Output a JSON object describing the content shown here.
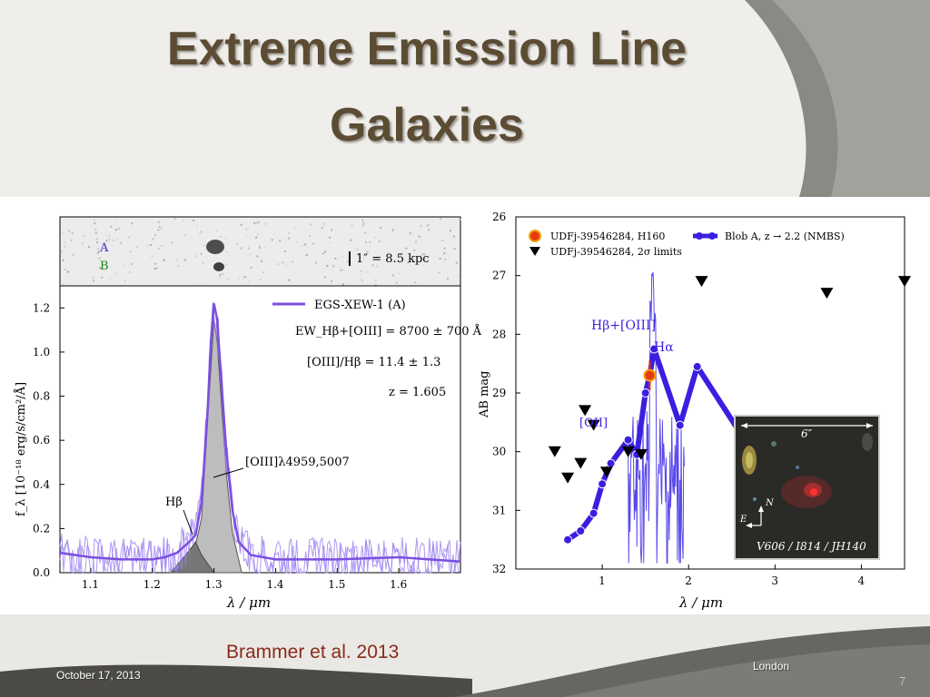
{
  "slide": {
    "title_line1": "Extreme Emission Line",
    "title_line2": "Galaxies",
    "citation": "Brammer et al. 2013",
    "date": "October 17, 2013",
    "location": "London",
    "page_number": "7",
    "colors": {
      "title": "#5b4c33",
      "citation": "#8b2a1a",
      "background": "#efeeea",
      "band": "#8a8a84"
    }
  },
  "chart_data": [
    {
      "type": "line",
      "inset_image": {
        "labels": [
          "A",
          "B"
        ],
        "scale_bar": "1″ = 8.5 kpc"
      },
      "legend": [
        "EGS-XEW-1 (A)"
      ],
      "annotations": [
        "EW_Hβ+[OIII] = 8700 ± 700 Å",
        "[OIII]/Hβ = 11.4 ± 1.3",
        "z = 1.605",
        "[OIII]λ4959,5007",
        "Hβ"
      ],
      "xlabel": "λ / μm",
      "ylabel": "f_λ [10⁻¹⁸ erg/s/cm²/Å]",
      "xlim": [
        1.05,
        1.7
      ],
      "ylim": [
        0.0,
        1.3
      ],
      "x_ticks": [
        "1.1",
        "1.2",
        "1.3",
        "1.4",
        "1.5",
        "1.6"
      ],
      "y_ticks": [
        "0.0",
        "0.2",
        "0.4",
        "0.6",
        "0.8",
        "1.0",
        "1.2"
      ],
      "series": [
        {
          "name": "EGS-XEW-1 (A)",
          "color": "#7b4fe0",
          "x": [
            1.05,
            1.1,
            1.15,
            1.2,
            1.22,
            1.24,
            1.26,
            1.27,
            1.28,
            1.29,
            1.295,
            1.3,
            1.305,
            1.31,
            1.32,
            1.33,
            1.34,
            1.36,
            1.4,
            1.5,
            1.6,
            1.7
          ],
          "y": [
            0.09,
            0.07,
            0.06,
            0.06,
            0.07,
            0.09,
            0.14,
            0.17,
            0.32,
            0.75,
            1.05,
            1.22,
            1.15,
            0.95,
            0.55,
            0.28,
            0.14,
            0.08,
            0.06,
            0.06,
            0.07,
            0.05
          ]
        }
      ],
      "fill_components": [
        {
          "name": "[OIII]λ4959,5007",
          "x": [
            1.26,
            1.28,
            1.29,
            1.3,
            1.305,
            1.31,
            1.32,
            1.33,
            1.345
          ],
          "y": [
            0.0,
            0.25,
            0.7,
            1.15,
            1.05,
            0.85,
            0.45,
            0.18,
            0.0
          ]
        },
        {
          "name": "Hβ",
          "x": [
            1.23,
            1.26,
            1.27,
            1.28,
            1.3
          ],
          "y": [
            0.0,
            0.1,
            0.14,
            0.08,
            0.0
          ]
        }
      ]
    },
    {
      "type": "scatter",
      "legend": [
        "UDFj-39546284, H160",
        "UDFj-39546284, 2σ limits",
        "Blob A, z → 2.2 (NMBS)"
      ],
      "annotations": [
        "Hβ+[OIII]",
        "Hα",
        "[OII]"
      ],
      "inset_image": {
        "scale": "6″",
        "compass_n": "N",
        "compass_e": "E",
        "filters": "V606 / I814 / JH140"
      },
      "xlabel": "λ / μm",
      "ylabel": "AB mag",
      "xlim": [
        0.0,
        4.5
      ],
      "ylim": [
        32,
        26
      ],
      "x_ticks": [
        "1",
        "2",
        "3",
        "4"
      ],
      "y_ticks": [
        "26",
        "27",
        "28",
        "29",
        "30",
        "31",
        "32"
      ],
      "series": [
        {
          "name": "Blob A, z → 2.2 (NMBS)",
          "color": "#3a1fe0",
          "x": [
            0.6,
            0.75,
            0.9,
            1.0,
            1.1,
            1.3,
            1.4,
            1.5,
            1.55,
            1.6,
            1.9,
            2.1,
            2.65
          ],
          "y": [
            31.5,
            31.35,
            31.05,
            30.55,
            30.2,
            29.8,
            30.05,
            29.0,
            28.7,
            28.25,
            29.55,
            28.55,
            29.8
          ]
        },
        {
          "name": "UDFj-39546284, H160",
          "color": "#e03010",
          "x": [
            1.55
          ],
          "y": [
            28.7
          ]
        },
        {
          "name": "UDFj-39546284, 2σ limits",
          "color": "#000000",
          "x": [
            0.45,
            0.6,
            0.75,
            0.8,
            0.9,
            1.05,
            1.3,
            1.45,
            2.15,
            3.6,
            4.5
          ],
          "y": [
            30.0,
            30.45,
            30.2,
            29.3,
            29.55,
            30.35,
            30.0,
            30.05,
            27.1,
            27.3,
            27.1
          ]
        }
      ]
    }
  ]
}
